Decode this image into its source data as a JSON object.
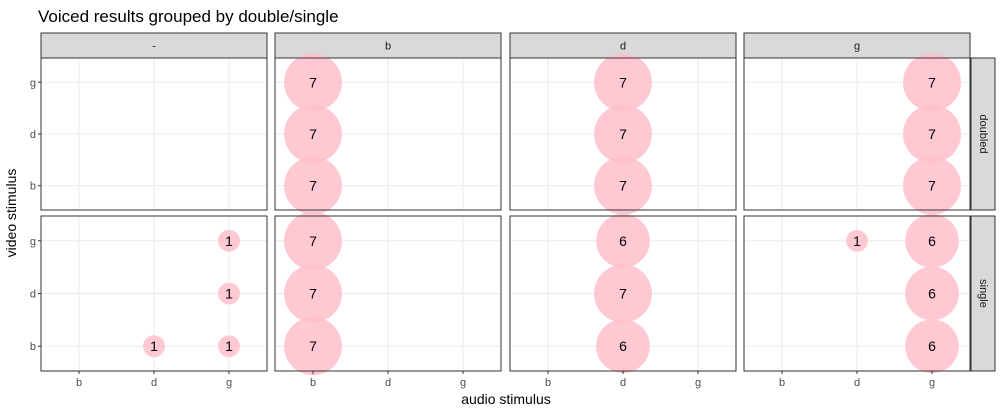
{
  "chart_data": {
    "type": "scatter",
    "subtype": "facet-bubble",
    "title": "Voiced results grouped by double/single",
    "xlabel": "audio stimulus",
    "ylabel": "video stimulus",
    "x_categories": [
      "b",
      "d",
      "g"
    ],
    "y_categories": [
      "b",
      "d",
      "g"
    ],
    "facet_columns": [
      "-",
      "b",
      "d",
      "g"
    ],
    "facet_rows": [
      "doubled",
      "single"
    ],
    "grid": true,
    "colors": {
      "bubble": "#ffc0cb",
      "strip_bg": "#d9d9d9",
      "panel_border": "#333333",
      "grid": "#ebebeb"
    },
    "points": [
      {
        "col": "b",
        "row": "doubled",
        "x": "b",
        "y": "g",
        "value": 7
      },
      {
        "col": "b",
        "row": "doubled",
        "x": "b",
        "y": "d",
        "value": 7
      },
      {
        "col": "b",
        "row": "doubled",
        "x": "b",
        "y": "b",
        "value": 7
      },
      {
        "col": "d",
        "row": "doubled",
        "x": "d",
        "y": "g",
        "value": 7
      },
      {
        "col": "d",
        "row": "doubled",
        "x": "d",
        "y": "d",
        "value": 7
      },
      {
        "col": "d",
        "row": "doubled",
        "x": "d",
        "y": "b",
        "value": 7
      },
      {
        "col": "g",
        "row": "doubled",
        "x": "g",
        "y": "g",
        "value": 7
      },
      {
        "col": "g",
        "row": "doubled",
        "x": "g",
        "y": "d",
        "value": 7
      },
      {
        "col": "g",
        "row": "doubled",
        "x": "g",
        "y": "b",
        "value": 7
      },
      {
        "col": "-",
        "row": "single",
        "x": "g",
        "y": "g",
        "value": 1
      },
      {
        "col": "-",
        "row": "single",
        "x": "g",
        "y": "d",
        "value": 1
      },
      {
        "col": "-",
        "row": "single",
        "x": "d",
        "y": "b",
        "value": 1
      },
      {
        "col": "-",
        "row": "single",
        "x": "g",
        "y": "b",
        "value": 1
      },
      {
        "col": "b",
        "row": "single",
        "x": "b",
        "y": "g",
        "value": 7
      },
      {
        "col": "b",
        "row": "single",
        "x": "b",
        "y": "d",
        "value": 7
      },
      {
        "col": "b",
        "row": "single",
        "x": "b",
        "y": "b",
        "value": 7
      },
      {
        "col": "d",
        "row": "single",
        "x": "d",
        "y": "g",
        "value": 6
      },
      {
        "col": "d",
        "row": "single",
        "x": "d",
        "y": "d",
        "value": 7
      },
      {
        "col": "d",
        "row": "single",
        "x": "d",
        "y": "b",
        "value": 6
      },
      {
        "col": "g",
        "row": "single",
        "x": "d",
        "y": "g",
        "value": 1
      },
      {
        "col": "g",
        "row": "single",
        "x": "g",
        "y": "g",
        "value": 6
      },
      {
        "col": "g",
        "row": "single",
        "x": "g",
        "y": "d",
        "value": 6
      },
      {
        "col": "g",
        "row": "single",
        "x": "g",
        "y": "b",
        "value": 6
      }
    ]
  }
}
